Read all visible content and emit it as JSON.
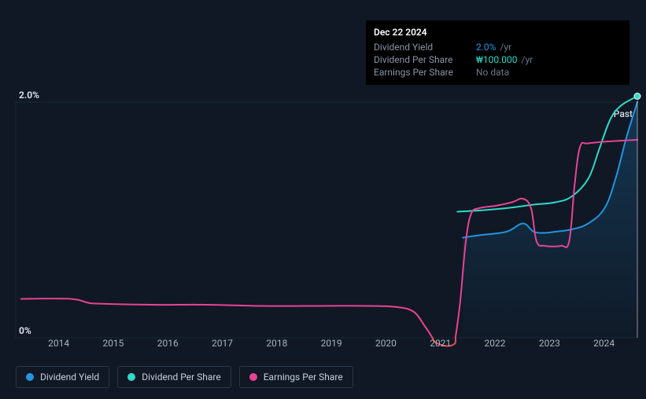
{
  "chart": {
    "type": "line",
    "background_color": "#0f1824",
    "grid_color": "#1a2636",
    "past_label": "Past",
    "y_axis": {
      "min": 0,
      "max": 2.0,
      "ticks": [
        {
          "value": 0,
          "label": "0%"
        },
        {
          "value": 2.0,
          "label": "2.0%"
        }
      ],
      "label_color": "#e6ecf5",
      "label_fontsize": 12
    },
    "x_axis": {
      "min": 2013.5,
      "max": 2024.9,
      "ticks": [
        "2014",
        "2015",
        "2016",
        "2017",
        "2018",
        "2019",
        "2020",
        "2021",
        "2022",
        "2023",
        "2024"
      ],
      "label_color": "#a8b3c1",
      "label_fontsize": 12
    },
    "series": {
      "dividend_yield": {
        "label": "Dividend Yield",
        "color": "#2394df",
        "line_width": 2,
        "points": [
          [
            2021.7,
            0.85
          ],
          [
            2022.0,
            0.87
          ],
          [
            2022.5,
            0.9
          ],
          [
            2022.8,
            0.97
          ],
          [
            2023.0,
            0.9
          ],
          [
            2023.2,
            0.89
          ],
          [
            2023.4,
            0.9
          ],
          [
            2023.7,
            0.92
          ],
          [
            2024.0,
            0.97
          ],
          [
            2024.3,
            1.1
          ],
          [
            2024.5,
            1.35
          ],
          [
            2024.7,
            1.7
          ],
          [
            2024.9,
            2.0
          ]
        ]
      },
      "dividend_per_share": {
        "label": "Dividend Per Share",
        "color": "#30d9c8",
        "line_width": 2,
        "points": [
          [
            2021.6,
            1.07
          ],
          [
            2022.0,
            1.08
          ],
          [
            2022.5,
            1.1
          ],
          [
            2023.0,
            1.13
          ],
          [
            2023.4,
            1.15
          ],
          [
            2023.7,
            1.2
          ],
          [
            2024.0,
            1.35
          ],
          [
            2024.2,
            1.6
          ],
          [
            2024.4,
            1.85
          ],
          [
            2024.6,
            1.97
          ],
          [
            2024.9,
            2.05
          ]
        ]
      },
      "earnings_per_share": {
        "label": "Earnings Per Share",
        "color_positive": "#e84393",
        "color_negative": "#eb4d4b",
        "line_width": 2,
        "points": [
          [
            2013.6,
            0.33
          ],
          [
            2014.5,
            0.33
          ],
          [
            2014.8,
            0.3
          ],
          [
            2015.0,
            0.29
          ],
          [
            2016.0,
            0.28
          ],
          [
            2017.0,
            0.28
          ],
          [
            2018.0,
            0.27
          ],
          [
            2019.0,
            0.27
          ],
          [
            2020.0,
            0.27
          ],
          [
            2020.5,
            0.26
          ],
          [
            2020.8,
            0.22
          ],
          [
            2021.0,
            0.1
          ],
          [
            2021.2,
            -0.04
          ],
          [
            2021.4,
            -0.07
          ],
          [
            2021.55,
            -0.05
          ],
          [
            2021.65,
            0.3
          ],
          [
            2021.75,
            0.8
          ],
          [
            2021.85,
            1.05
          ],
          [
            2022.0,
            1.1
          ],
          [
            2022.3,
            1.12
          ],
          [
            2022.6,
            1.15
          ],
          [
            2022.8,
            1.18
          ],
          [
            2022.95,
            1.1
          ],
          [
            2023.05,
            0.82
          ],
          [
            2023.2,
            0.78
          ],
          [
            2023.5,
            0.78
          ],
          [
            2023.65,
            0.82
          ],
          [
            2023.75,
            1.3
          ],
          [
            2023.85,
            1.62
          ],
          [
            2024.0,
            1.65
          ],
          [
            2024.5,
            1.67
          ],
          [
            2024.9,
            1.68
          ]
        ]
      }
    },
    "tooltip": {
      "date": "Dec 22 2024",
      "rows": [
        {
          "label": "Dividend Yield",
          "value": "2.0%",
          "suffix": "/yr",
          "value_color": "#2394df"
        },
        {
          "label": "Dividend Per Share",
          "value": "₩100.000",
          "suffix": "/yr",
          "value_color": "#30d9c8"
        },
        {
          "label": "Earnings Per Share",
          "value": "No data",
          "suffix": "",
          "value_color": "#6b788a"
        }
      ]
    },
    "legend": {
      "border_color": "#2a3749",
      "text_color": "#c5d0de",
      "items": [
        {
          "label": "Dividend Yield",
          "color": "#2394df"
        },
        {
          "label": "Dividend Per Share",
          "color": "#30d9c8"
        },
        {
          "label": "Earnings Per Share",
          "color": "#e84393"
        }
      ]
    }
  }
}
